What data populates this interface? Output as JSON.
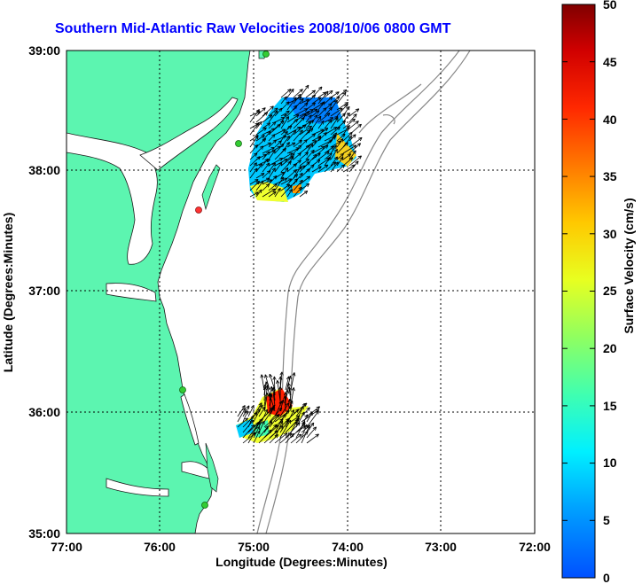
{
  "title": "Southern Mid-Atlantic Raw Velocities 2008/10/06 0800 GMT",
  "map": {
    "xlabel": "Longitude (Degrees:Minutes)",
    "ylabel": "Latitude (Degrees:Minutes)",
    "x_ticks": [
      "77:00",
      "76:00",
      "75:00",
      "74:00",
      "73:00",
      "72:00"
    ],
    "y_ticks": [
      "39:00",
      "38:00",
      "37:00",
      "36:00",
      "35:00"
    ],
    "lon_range": [
      -77,
      -72
    ],
    "lat_range": [
      35,
      39
    ],
    "land_color": "#5cf5b0",
    "station_color": "#33cc33",
    "station_alert_color": "#ff3333"
  },
  "colorbar": {
    "label": "Surface Velocity (cm/s)",
    "ticks": [
      "0",
      "5",
      "10",
      "15",
      "20",
      "25",
      "30",
      "35",
      "40",
      "45",
      "50"
    ],
    "range": [
      0,
      50
    ]
  }
}
